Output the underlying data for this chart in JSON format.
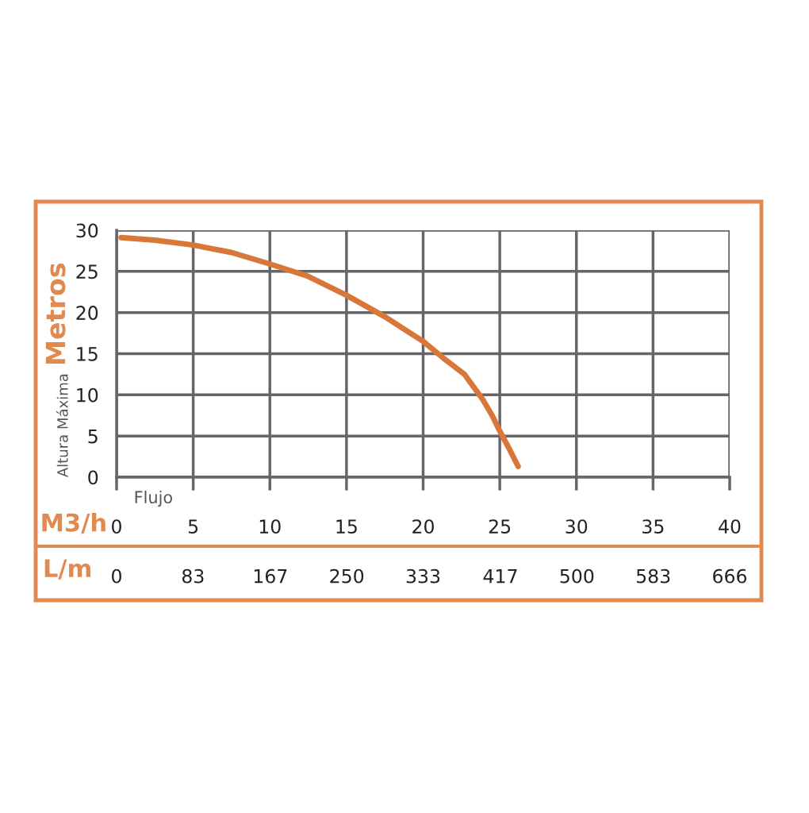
{
  "chart_data": {
    "type": "line",
    "xlabel": "M3/h",
    "x2label": "L/m",
    "ylabel": "Metros",
    "annotations": [
      "Altura Máxima",
      "Flujo"
    ],
    "x": [
      0.3,
      2.5,
      5,
      7.5,
      10,
      12.5,
      15,
      17.5,
      20,
      21.3,
      22.7,
      23.9,
      24.5,
      25,
      25.6,
      26.2
    ],
    "series": [
      {
        "color": "#d9773a",
        "values": [
          29.1,
          28.8,
          28.2,
          27.3,
          25.9,
          24.4,
          22.1,
          19.5,
          16.5,
          14.5,
          12.5,
          9.4,
          7.5,
          5.6,
          3.5,
          1.3
        ]
      }
    ],
    "xlim": [
      0,
      40
    ],
    "xticks": [
      0,
      5,
      10,
      15,
      20,
      25,
      30,
      35,
      40
    ],
    "x2lim": [
      0,
      666
    ],
    "x2ticks": [
      0,
      83,
      167,
      250,
      333,
      417,
      500,
      583,
      666
    ],
    "ylim": [
      0,
      30
    ],
    "yticks": [
      0,
      5,
      10,
      15,
      20,
      25,
      30
    ],
    "grid": true,
    "marker": "none",
    "line_style": "solid"
  }
}
